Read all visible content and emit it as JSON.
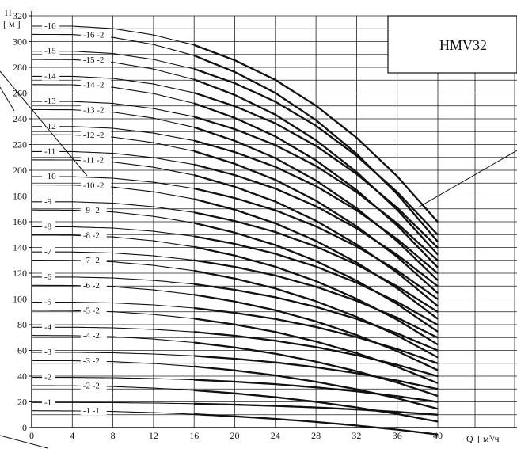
{
  "chart_data": {
    "type": "line",
    "title": "HMV32",
    "ylabel": "H",
    "yunit": "[ м ]",
    "xlabel": "Q",
    "xunit": "[ м³/ч",
    "xlim": [
      0,
      40
    ],
    "ylim": [
      0,
      320
    ],
    "xticks": [
      "0",
      "4",
      "8",
      "12",
      "16",
      "20",
      "24",
      "28",
      "32",
      "36",
      "40"
    ],
    "yticks": [
      "0",
      "20",
      "40",
      "60",
      "80",
      "100",
      "120",
      "140",
      "160",
      "180",
      "200",
      "220",
      "240",
      "260",
      "280",
      "300",
      "320"
    ],
    "grid": true,
    "x": [
      0,
      4,
      8,
      12,
      16,
      20,
      24,
      28,
      32,
      36,
      40
    ],
    "stage_head_shutoff": 19.5,
    "stage_shape": [
      1.0,
      1.0,
      0.994,
      0.978,
      0.953,
      0.915,
      0.866,
      0.802,
      0.722,
      0.626,
      0.512
    ],
    "trim_shape": [
      0,
      0.02,
      0.07,
      0.16,
      0.28,
      0.42,
      0.58,
      0.76,
      0.95,
      1.16,
      1.4
    ],
    "series": [
      {
        "name": "-1",
        "stages": 1,
        "trimmed": false
      },
      {
        "name": "-1 -1",
        "stages": 1,
        "trimmed": true
      },
      {
        "name": "-2",
        "stages": 2,
        "trimmed": false
      },
      {
        "name": "-2 -2",
        "stages": 2,
        "trimmed": true
      },
      {
        "name": "-3",
        "stages": 3,
        "trimmed": false
      },
      {
        "name": "-3 -2",
        "stages": 3,
        "trimmed": true
      },
      {
        "name": "-4",
        "stages": 4,
        "trimmed": false
      },
      {
        "name": "-4 -2",
        "stages": 4,
        "trimmed": true
      },
      {
        "name": "-5",
        "stages": 5,
        "trimmed": false
      },
      {
        "name": "-5 -2",
        "stages": 5,
        "trimmed": true
      },
      {
        "name": "-6",
        "stages": 6,
        "trimmed": false
      },
      {
        "name": "-6 -2",
        "stages": 6,
        "trimmed": true
      },
      {
        "name": "-7",
        "stages": 7,
        "trimmed": false
      },
      {
        "name": "-7 -2",
        "stages": 7,
        "trimmed": true
      },
      {
        "name": "-8",
        "stages": 8,
        "trimmed": false
      },
      {
        "name": "-8 -2",
        "stages": 8,
        "trimmed": true
      },
      {
        "name": "-9",
        "stages": 9,
        "trimmed": false
      },
      {
        "name": "-9 -2",
        "stages": 9,
        "trimmed": true
      },
      {
        "name": "-10",
        "stages": 10,
        "trimmed": false
      },
      {
        "name": "-10 -2",
        "stages": 10,
        "trimmed": true
      },
      {
        "name": "-11",
        "stages": 11,
        "trimmed": false
      },
      {
        "name": "-11 -2",
        "stages": 11,
        "trimmed": true
      },
      {
        "name": "-12",
        "stages": 12,
        "trimmed": false
      },
      {
        "name": "-12 -2",
        "stages": 12,
        "trimmed": true
      },
      {
        "name": "-13",
        "stages": 13,
        "trimmed": false
      },
      {
        "name": "-13 -2",
        "stages": 13,
        "trimmed": true
      },
      {
        "name": "-14",
        "stages": 14,
        "trimmed": false
      },
      {
        "name": "-14 -2",
        "stages": 14,
        "trimmed": true
      },
      {
        "name": "-15",
        "stages": 15,
        "trimmed": false
      },
      {
        "name": "-15 -2",
        "stages": 15,
        "trimmed": true
      },
      {
        "name": "-16",
        "stages": 16,
        "trimmed": false
      },
      {
        "name": "-16 -2",
        "stages": 16,
        "trimmed": true
      }
    ]
  }
}
